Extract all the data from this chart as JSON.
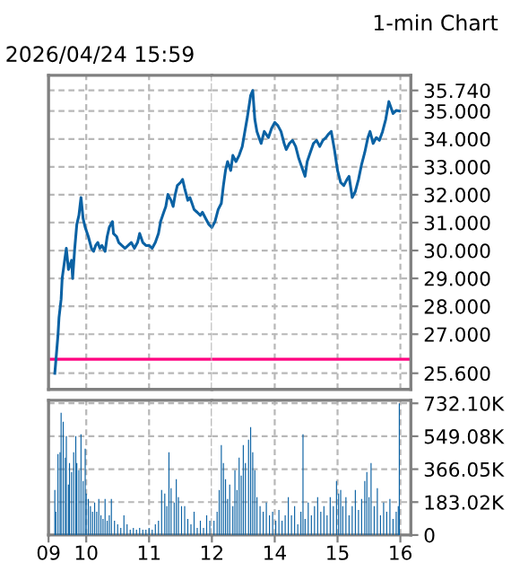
{
  "chart_data": [
    {
      "type": "line",
      "subtitle": "2026/04/24 15:59",
      "color": "#0b62a4",
      "x": [
        "2026-04-24T09:30",
        "2026-04-24T09:33",
        "2026-04-24T09:34",
        "2026-04-24T09:36",
        "2026-04-24T09:37",
        "2026-04-24T09:39",
        "2026-04-24T09:41",
        "2026-04-24T09:43",
        "2026-04-24T09:46",
        "2026-04-24T09:47",
        "2026-04-24T09:49",
        "2026-04-24T09:51",
        "2026-04-24T09:53",
        "2026-04-24T09:55",
        "2026-04-24T09:57",
        "2026-04-24T09:59",
        "2026-04-24T10:02",
        "2026-04-24T10:05",
        "2026-04-24T10:07",
        "2026-04-24T10:09",
        "2026-04-24T10:11",
        "2026-04-24T10:13",
        "2026-04-24T10:15",
        "2026-04-24T10:18",
        "2026-04-24T10:20",
        "2026-04-24T10:22",
        "2026-04-24T10:25",
        "2026-04-24T10:26",
        "2026-04-24T10:29",
        "2026-04-24T10:31",
        "2026-04-24T10:34",
        "2026-04-24T10:37",
        "2026-04-24T10:40",
        "2026-04-24T10:43",
        "2026-04-24T10:46",
        "2026-04-24T10:49",
        "2026-04-24T10:51",
        "2026-04-24T10:54",
        "2026-04-24T10:57",
        "2026-04-24T11:00",
        "2026-04-24T11:03",
        "2026-04-24T11:06",
        "2026-04-24T11:09",
        "2026-04-24T11:11",
        "2026-04-24T11:14",
        "2026-04-24T11:16",
        "2026-04-24T11:18",
        "2026-04-24T11:21",
        "2026-04-24T11:23",
        "2026-04-24T11:25",
        "2026-04-24T11:27",
        "2026-04-24T11:30",
        "2026-04-24T11:32",
        "2026-04-24T11:34",
        "2026-04-24T11:37",
        "2026-04-24T11:39",
        "2026-04-24T11:41",
        "2026-04-24T11:43",
        "2026-04-24T11:46",
        "2026-04-24T11:49",
        "2026-04-24T11:51",
        "2026-04-24T11:54",
        "2026-04-24T11:57",
        "2026-04-24T12:00"
      ],
      "values": [
        25.6,
        26.96,
        27.6,
        28.25,
        29.0,
        29.54,
        30.08,
        29.32,
        29.65,
        29.0,
        30.08,
        30.94,
        31.26,
        31.9,
        31.15,
        30.83,
        30.5,
        30.08,
        29.97,
        30.18,
        30.29,
        30.08,
        30.18,
        29.97,
        30.5,
        30.83,
        31.04,
        30.61,
        30.5,
        30.29,
        30.18,
        30.08,
        30.18,
        30.29,
        30.08,
        30.29,
        30.61,
        30.29,
        30.18,
        30.18,
        30.08,
        30.29,
        30.61,
        31.04,
        31.37,
        31.58,
        32.01,
        31.8,
        31.58,
        32.01,
        32.33,
        32.44,
        32.55,
        32.23,
        31.8,
        31.9,
        31.69,
        31.47,
        31.37,
        31.26,
        31.37,
        31.15,
        30.94,
        30.83
      ],
      "xlim": [
        "2026-04-24T09:24",
        "2026-04-24T12:00"
      ],
      "xticks": [
        {
          "value": "2026-04-24T10:00",
          "label": null
        },
        {
          "value": "2026-04-24T11:00",
          "label": null
        }
      ],
      "ylim": [
        25.02,
        36.28
      ],
      "yticks": [
        {
          "value": 25.6,
          "label": null
        },
        {
          "value": 27,
          "label": null
        },
        {
          "value": 28,
          "label": null
        },
        {
          "value": 29,
          "label": null
        },
        {
          "value": 30,
          "label": null
        },
        {
          "value": 31,
          "label": null
        },
        {
          "value": 32,
          "label": null
        },
        {
          "value": 33,
          "label": null
        },
        {
          "value": 34,
          "label": null
        },
        {
          "value": 35,
          "label": null
        },
        {
          "value": 35.74,
          "label": null
        }
      ],
      "ref_lines": [
        {
          "axis": "y",
          "value": 26.1,
          "color": "#ff0080"
        }
      ],
      "grid": true,
      "tick_labels": false
    },
    {
      "type": "line",
      "title": "1-min Chart",
      "color": "#0b62a4",
      "x": [
        "2026-04-24T13:00",
        "2026-04-24T13:03",
        "2026-04-24T13:06",
        "2026-04-24T13:09",
        "2026-04-24T13:11",
        "2026-04-24T13:13",
        "2026-04-24T13:15",
        "2026-04-24T13:18",
        "2026-04-24T13:20",
        "2026-04-24T13:23",
        "2026-04-24T13:26",
        "2026-04-24T13:29",
        "2026-04-24T13:31",
        "2026-04-24T13:34",
        "2026-04-24T13:37",
        "2026-04-24T13:39",
        "2026-04-24T13:41",
        "2026-04-24T13:43",
        "2026-04-24T13:45",
        "2026-04-24T13:47",
        "2026-04-24T13:50",
        "2026-04-24T13:52",
        "2026-04-24T13:54",
        "2026-04-24T13:57",
        "2026-04-24T14:00",
        "2026-04-24T14:03",
        "2026-04-24T14:06",
        "2026-04-24T14:09",
        "2026-04-24T14:11",
        "2026-04-24T14:14",
        "2026-04-24T14:17",
        "2026-04-24T14:20",
        "2026-04-24T14:23",
        "2026-04-24T14:26",
        "2026-04-24T14:29",
        "2026-04-24T14:31",
        "2026-04-24T14:34",
        "2026-04-24T14:37",
        "2026-04-24T14:40",
        "2026-04-24T14:43",
        "2026-04-24T14:46",
        "2026-04-24T14:49",
        "2026-04-24T14:51",
        "2026-04-24T14:54",
        "2026-04-24T14:57",
        "2026-04-24T15:00",
        "2026-04-24T15:03",
        "2026-04-24T15:06",
        "2026-04-24T15:09",
        "2026-04-24T15:11",
        "2026-04-24T15:14",
        "2026-04-24T15:17",
        "2026-04-24T15:20",
        "2026-04-24T15:23",
        "2026-04-24T15:26",
        "2026-04-24T15:29",
        "2026-04-24T15:31",
        "2026-04-24T15:34",
        "2026-04-24T15:37",
        "2026-04-24T15:40",
        "2026-04-24T15:43",
        "2026-04-24T15:46",
        "2026-04-24T15:49",
        "2026-04-24T15:51",
        "2026-04-24T15:53",
        "2026-04-24T15:56",
        "2026-04-24T15:59"
      ],
      "values": [
        30.83,
        31.04,
        31.47,
        31.69,
        32.33,
        32.87,
        33.19,
        32.87,
        33.41,
        33.19,
        33.41,
        33.73,
        34.16,
        34.81,
        35.56,
        35.74,
        34.7,
        34.27,
        34.05,
        33.84,
        34.27,
        34.16,
        34.05,
        34.38,
        34.59,
        34.48,
        34.27,
        33.84,
        33.62,
        33.84,
        33.95,
        33.73,
        33.3,
        32.98,
        32.66,
        33.19,
        33.52,
        33.84,
        33.95,
        33.73,
        33.95,
        34.05,
        34.16,
        34.27,
        33.62,
        32.87,
        32.44,
        32.33,
        32.55,
        32.66,
        31.9,
        32.12,
        32.55,
        33.09,
        33.52,
        34.05,
        34.27,
        33.84,
        34.05,
        33.95,
        34.27,
        34.7,
        35.34,
        35.13,
        34.91,
        35.02,
        35.0
      ],
      "xlim": [
        "2026-04-24T13:00",
        "2026-04-24T16:10"
      ],
      "xticks": [
        {
          "value": "2026-04-24T14:00",
          "label": null
        },
        {
          "value": "2026-04-24T15:00",
          "label": null
        },
        {
          "value": "2026-04-24T16:00",
          "label": null
        }
      ],
      "ylim": [
        25.02,
        36.28
      ],
      "yticks": [
        {
          "value": 25.6,
          "label": "25.600"
        },
        {
          "value": 27,
          "label": "27.000"
        },
        {
          "value": 28,
          "label": "28.000"
        },
        {
          "value": 29,
          "label": "29.000"
        },
        {
          "value": 30,
          "label": "30.000"
        },
        {
          "value": 31,
          "label": "31.000"
        },
        {
          "value": 32,
          "label": "32.000"
        },
        {
          "value": 33,
          "label": "33.000"
        },
        {
          "value": 34,
          "label": "34.000"
        },
        {
          "value": 35,
          "label": "35.000"
        },
        {
          "value": 35.74,
          "label": "35.740"
        }
      ],
      "ref_lines": [
        {
          "axis": "y",
          "value": 26.1,
          "color": "#ff0080"
        }
      ],
      "grid": true,
      "tick_labels": "y"
    },
    {
      "type": "bar",
      "color": "#0b62a4",
      "x": [
        "2026-04-24T09:30",
        "2026-04-24T09:31",
        "2026-04-24T09:33",
        "2026-04-24T09:35",
        "2026-04-24T09:36",
        "2026-04-24T09:38",
        "2026-04-24T09:40",
        "2026-04-24T09:41",
        "2026-04-24T09:43",
        "2026-04-24T09:44",
        "2026-04-24T09:46",
        "2026-04-24T09:48",
        "2026-04-24T09:50",
        "2026-04-24T09:51",
        "2026-04-24T09:53",
        "2026-04-24T09:55",
        "2026-04-24T09:57",
        "2026-04-24T09:59",
        "2026-04-24T10:00",
        "2026-04-24T10:02",
        "2026-04-24T10:04",
        "2026-04-24T10:06",
        "2026-04-24T10:08",
        "2026-04-24T10:10",
        "2026-04-24T10:12",
        "2026-04-24T10:14",
        "2026-04-24T10:16",
        "2026-04-24T10:18",
        "2026-04-24T10:20",
        "2026-04-24T10:22",
        "2026-04-24T10:24",
        "2026-04-24T10:27",
        "2026-04-24T10:30",
        "2026-04-24T10:33",
        "2026-04-24T10:36",
        "2026-04-24T10:39",
        "2026-04-24T10:42",
        "2026-04-24T10:45",
        "2026-04-24T10:48",
        "2026-04-24T10:51",
        "2026-04-24T10:54",
        "2026-04-24T10:57",
        "2026-04-24T11:00",
        "2026-04-24T11:03",
        "2026-04-24T11:06",
        "2026-04-24T11:09",
        "2026-04-24T11:12",
        "2026-04-24T11:15",
        "2026-04-24T11:17",
        "2026-04-24T11:19",
        "2026-04-24T11:21",
        "2026-04-24T11:24",
        "2026-04-24T11:26",
        "2026-04-24T11:28",
        "2026-04-24T11:31",
        "2026-04-24T11:34",
        "2026-04-24T11:37",
        "2026-04-24T11:40",
        "2026-04-24T11:43",
        "2026-04-24T11:46",
        "2026-04-24T11:49",
        "2026-04-24T11:52",
        "2026-04-24T11:55",
        "2026-04-24T11:58"
      ],
      "values": [
        250,
        130,
        450,
        460,
        680,
        630,
        430,
        550,
        280,
        400,
        350,
        460,
        550,
        400,
        360,
        560,
        300,
        480,
        230,
        200,
        160,
        130,
        180,
        130,
        200,
        110,
        90,
        200,
        80,
        110,
        200,
        80,
        60,
        40,
        110,
        60,
        30,
        40,
        30,
        40,
        30,
        30,
        40,
        30,
        60,
        80,
        250,
        230,
        160,
        460,
        260,
        180,
        310,
        210,
        160,
        160,
        90,
        60,
        130,
        40,
        80,
        40,
        110,
        80
      ],
      "xlim": [
        "2026-04-24T09:24",
        "2026-04-24T12:00"
      ],
      "xticks": [
        {
          "value": "2026-04-24T09:24",
          "label": "09"
        },
        {
          "value": "2026-04-24T10:00",
          "label": "10"
        },
        {
          "value": "2026-04-24T11:00",
          "label": "11"
        },
        {
          "value": "2026-04-24T12:00",
          "label": "12"
        }
      ],
      "ylim": [
        0,
        749
      ],
      "yticks": [
        {
          "value": 0,
          "label": null
        },
        {
          "value": 183.02,
          "label": null
        },
        {
          "value": 366.05,
          "label": null
        },
        {
          "value": 549.08,
          "label": null
        },
        {
          "value": 732.1,
          "label": null
        }
      ],
      "grid": true,
      "tick_labels": "x"
    },
    {
      "type": "bar",
      "color": "#0b62a4",
      "x": [
        "2026-04-24T13:02",
        "2026-04-24T13:05",
        "2026-04-24T13:07",
        "2026-04-24T13:09",
        "2026-04-24T13:11",
        "2026-04-24T13:13",
        "2026-04-24T13:15",
        "2026-04-24T13:17",
        "2026-04-24T13:20",
        "2026-04-24T13:22",
        "2026-04-24T13:24",
        "2026-04-24T13:26",
        "2026-04-24T13:28",
        "2026-04-24T13:30",
        "2026-04-24T13:32",
        "2026-04-24T13:35",
        "2026-04-24T13:37",
        "2026-04-24T13:39",
        "2026-04-24T13:41",
        "2026-04-24T13:43",
        "2026-04-24T13:46",
        "2026-04-24T13:49",
        "2026-04-24T13:52",
        "2026-04-24T13:55",
        "2026-04-24T13:58",
        "2026-04-24T14:01",
        "2026-04-24T14:04",
        "2026-04-24T14:07",
        "2026-04-24T14:10",
        "2026-04-24T14:13",
        "2026-04-24T14:16",
        "2026-04-24T14:19",
        "2026-04-24T14:22",
        "2026-04-24T14:25",
        "2026-04-24T14:27",
        "2026-04-24T14:29",
        "2026-04-24T14:32",
        "2026-04-24T14:35",
        "2026-04-24T14:38",
        "2026-04-24T14:41",
        "2026-04-24T14:44",
        "2026-04-24T14:47",
        "2026-04-24T14:50",
        "2026-04-24T14:53",
        "2026-04-24T14:56",
        "2026-04-24T14:59",
        "2026-04-24T15:01",
        "2026-04-24T15:03",
        "2026-04-24T15:05",
        "2026-04-24T15:08",
        "2026-04-24T15:11",
        "2026-04-24T15:14",
        "2026-04-24T15:17",
        "2026-04-24T15:20",
        "2026-04-24T15:23",
        "2026-04-24T15:26",
        "2026-04-24T15:28",
        "2026-04-24T15:30",
        "2026-04-24T15:32",
        "2026-04-24T15:35",
        "2026-04-24T15:38",
        "2026-04-24T15:41",
        "2026-04-24T15:44",
        "2026-04-24T15:47",
        "2026-04-24T15:50",
        "2026-04-24T15:53",
        "2026-04-24T15:56",
        "2026-04-24T15:58",
        "2026-04-24T15:59"
      ],
      "values": [
        80,
        130,
        250,
        500,
        400,
        310,
        200,
        280,
        160,
        360,
        250,
        430,
        330,
        500,
        400,
        530,
        600,
        460,
        360,
        210,
        160,
        130,
        180,
        110,
        130,
        80,
        140,
        80,
        110,
        210,
        110,
        160,
        60,
        130,
        560,
        90,
        180,
        110,
        160,
        210,
        130,
        160,
        110,
        210,
        160,
        300,
        230,
        250,
        160,
        210,
        110,
        160,
        250,
        140,
        200,
        300,
        350,
        210,
        400,
        160,
        260,
        110,
        180,
        130,
        200,
        90,
        130,
        160,
        732.1
      ],
      "xlim": [
        "2026-04-24T13:00",
        "2026-04-24T16:10"
      ],
      "xticks": [
        {
          "value": "2026-04-24T14:00",
          "label": "14"
        },
        {
          "value": "2026-04-24T15:00",
          "label": "15"
        },
        {
          "value": "2026-04-24T16:00",
          "label": "16"
        }
      ],
      "ylim": [
        0,
        749
      ],
      "yticks": [
        {
          "value": 0,
          "label": "0"
        },
        {
          "value": 183.02,
          "label": "183.02K"
        },
        {
          "value": 366.05,
          "label": "366.05K"
        },
        {
          "value": 549.08,
          "label": "549.08K"
        },
        {
          "value": 732.1,
          "label": "732.10K"
        }
      ],
      "grid": true
    }
  ]
}
